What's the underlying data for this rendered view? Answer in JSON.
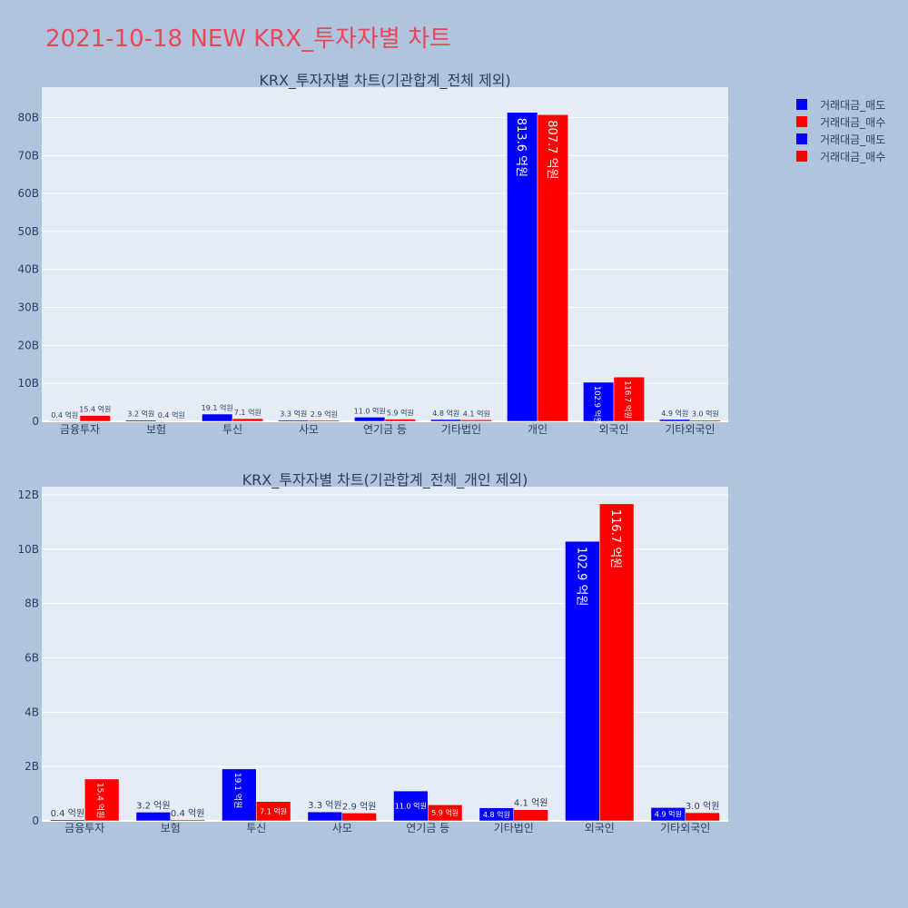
{
  "page": {
    "title": "2021-10-18 NEW KRX_투자자별 차트"
  },
  "colors": {
    "sell": "#0000ff",
    "buy": "#ff0000",
    "plot_bg": "#e5ecf6",
    "paper_bg": "#b0c4de",
    "title": "#e8475a"
  },
  "legend": [
    {
      "label": "거래대금_매도",
      "color": "#0000ff"
    },
    {
      "label": "거래대금_매수",
      "color": "#ff0000"
    },
    {
      "label": "거래대금_매도",
      "color": "#0000ff"
    },
    {
      "label": "거래대금_매수",
      "color": "#ff0000"
    }
  ],
  "chart_data": [
    {
      "type": "bar",
      "title": "KRX_투자자별 차트(기관합계_전체 제외)",
      "categories": [
        "금융투자",
        "보험",
        "투신",
        "사모",
        "연기금 등",
        "기타법인",
        "개인",
        "외국인",
        "기타외국인"
      ],
      "series": [
        {
          "name": "거래대금_매도",
          "color": "#0000ff",
          "values": [
            0.04,
            0.32,
            1.91,
            0.33,
            1.1,
            0.48,
            81.36,
            10.29,
            0.49
          ],
          "labels": [
            "0.4 억원",
            "3.2 억원",
            "19.1 억원",
            "3.3 억원",
            "11.0 억원",
            "4.8 억원",
            "813.6 억원",
            "102.9 억원",
            "4.9 억원"
          ]
        },
        {
          "name": "거래대금_매수",
          "color": "#ff0000",
          "values": [
            1.54,
            0.04,
            0.71,
            0.29,
            0.59,
            0.41,
            80.77,
            11.67,
            0.3
          ],
          "labels": [
            "15.4 억원",
            "0.4 억원",
            "7.1 억원",
            "2.9 억원",
            "5.9 억원",
            "4.1 억원",
            "807.7 억원",
            "116.7 억원",
            "3.0 억원"
          ]
        }
      ],
      "ylim": [
        0,
        88
      ],
      "yticks": [
        0,
        10,
        20,
        30,
        40,
        50,
        60,
        70,
        80
      ],
      "ytick_labels": [
        "0",
        "10B",
        "20B",
        "30B",
        "40B",
        "50B",
        "60B",
        "70B",
        "80B"
      ],
      "grid": true
    },
    {
      "type": "bar",
      "title": "KRX_투자자별 차트(기관합계_전체_개인 제외)",
      "categories": [
        "금융투자",
        "보험",
        "투신",
        "사모",
        "연기금 등",
        "기타법인",
        "외국인",
        "기타외국인"
      ],
      "series": [
        {
          "name": "거래대금_매도",
          "color": "#0000ff",
          "values": [
            0.04,
            0.32,
            1.91,
            0.33,
            1.1,
            0.48,
            10.29,
            0.49
          ],
          "labels": [
            "0.4 억원",
            "3.2 억원",
            "19.1 억원",
            "3.3 억원",
            "11.0 억원",
            "4.8 억원",
            "102.9 억원",
            "4.9 억원"
          ]
        },
        {
          "name": "거래대금_매수",
          "color": "#ff0000",
          "values": [
            1.54,
            0.04,
            0.71,
            0.29,
            0.59,
            0.41,
            11.67,
            0.3
          ],
          "labels": [
            "15.4 억원",
            "0.4 억원",
            "7.1 억원",
            "2.9 억원",
            "5.9 억원",
            "4.1 억원",
            "116.7 억원",
            "3.0 억원"
          ]
        }
      ],
      "ylim": [
        0,
        12.3
      ],
      "yticks": [
        0,
        2,
        4,
        6,
        8,
        10,
        12
      ],
      "ytick_labels": [
        "0",
        "2B",
        "4B",
        "6B",
        "8B",
        "10B",
        "12B"
      ],
      "grid": true
    }
  ]
}
